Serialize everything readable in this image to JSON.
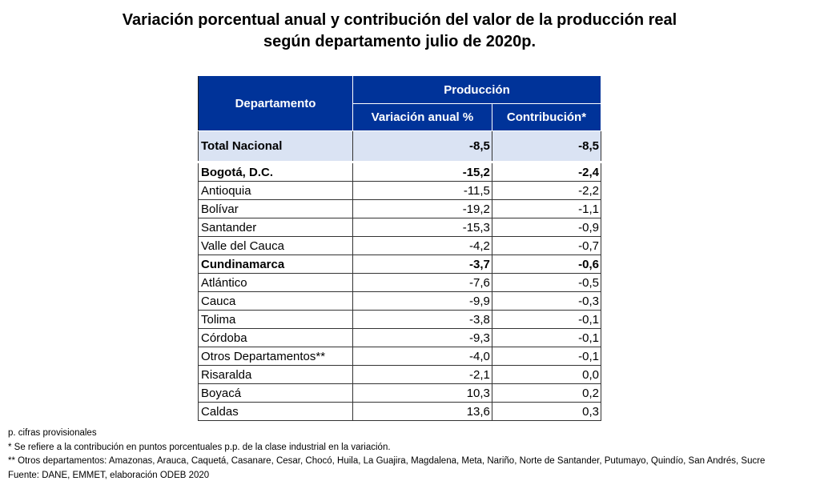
{
  "title_line1": "Variación porcentual anual y contribución del valor de la producción real",
  "title_line2": "según departamento julio de 2020p.",
  "table": {
    "header_departamento": "Departamento",
    "header_produccion": "Producción",
    "header_variacion": "Variación anual %",
    "header_contribucion": "Contribución*",
    "header_color": "#003399",
    "rows": [
      {
        "dep": "Total Nacional",
        "var": "-8,5",
        "con": "-8,5",
        "bold": true,
        "total": true
      },
      {
        "dep": "Bogotá, D.C.",
        "var": "-15,2",
        "con": "-2,4",
        "bold": true
      },
      {
        "dep": "Antioquia",
        "var": "-11,5",
        "con": "-2,2"
      },
      {
        "dep": "Bolívar",
        "var": "-19,2",
        "con": "-1,1"
      },
      {
        "dep": "Santander",
        "var": "-15,3",
        "con": "-0,9"
      },
      {
        "dep": "Valle del Cauca",
        "var": "-4,2",
        "con": "-0,7"
      },
      {
        "dep": "Cundinamarca",
        "var": "-3,7",
        "con": "-0,6",
        "bold": true
      },
      {
        "dep": "Atlántico",
        "var": "-7,6",
        "con": "-0,5"
      },
      {
        "dep": "Cauca",
        "var": "-9,9",
        "con": "-0,3"
      },
      {
        "dep": "Tolima",
        "var": "-3,8",
        "con": "-0,1"
      },
      {
        "dep": "Córdoba",
        "var": "-9,3",
        "con": "-0,1"
      },
      {
        "dep": "Otros Departamentos**",
        "var": "-4,0",
        "con": "-0,1"
      },
      {
        "dep": "Risaralda",
        "var": "-2,1",
        "con": "0,0"
      },
      {
        "dep": "Boyacá",
        "var": "10,3",
        "con": "0,2"
      },
      {
        "dep": "Caldas",
        "var": "13,6",
        "con": "0,3"
      }
    ]
  },
  "notes": [
    "p. cifras provisionales",
    "* Se refiere a la contribución en puntos porcentuales p.p. de la clase industrial en la variación.",
    "** Otros departamentos: Amazonas, Arauca, Caquetá, Casanare, Cesar, Chocó, Huila, La Guajira, Magdalena, Meta, Nariño, Norte de Santander, Putumayo, Quindío, San Andrés, Sucre",
    "Fuente: DANE, EMMET, elaboración ODEB 2020"
  ]
}
